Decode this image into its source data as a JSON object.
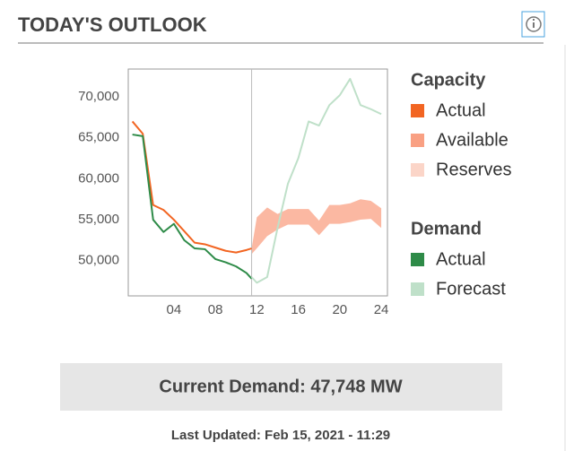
{
  "header": {
    "title": "TODAY'S OUTLOOK"
  },
  "chart_data": {
    "type": "line",
    "x": [
      0,
      1,
      2,
      3,
      4,
      5,
      6,
      7,
      8,
      9,
      10,
      11,
      11.5,
      12,
      13,
      14,
      15,
      16,
      17,
      18,
      19,
      20,
      21,
      22,
      23,
      24
    ],
    "xlim": [
      -0.4,
      24.6
    ],
    "xticks": [
      {
        "value": 4,
        "label": "04"
      },
      {
        "value": 8,
        "label": "08"
      },
      12,
      16,
      20,
      24
    ],
    "ylim": [
      45700,
      73400
    ],
    "yticks": [
      {
        "value": 50000,
        "label": "50,000"
      },
      {
        "value": 55000,
        "label": "55,000"
      },
      {
        "value": 60000,
        "label": "60,000"
      },
      {
        "value": 65000,
        "label": "65,000"
      },
      {
        "value": 70000,
        "label": "70,000"
      }
    ],
    "legend_groups": [
      {
        "title": "Capacity",
        "series": [
          {
            "name": "Actual",
            "color": "#f26522",
            "style": "line",
            "values": [
              67000,
              65500,
              56800,
              56200,
              55000,
              53600,
              52200,
              52000,
              51600,
              51200,
              51000,
              51300,
              51500,
              null,
              null,
              null,
              null,
              null,
              null,
              null,
              null,
              null,
              null,
              null,
              null,
              null
            ]
          },
          {
            "name": "Available",
            "color": "#f9a083",
            "style": "band-top",
            "values": [
              null,
              null,
              null,
              null,
              null,
              null,
              null,
              null,
              null,
              null,
              null,
              null,
              51500,
              55300,
              56500,
              55700,
              56300,
              56300,
              56300,
              54900,
              56800,
              56800,
              57000,
              57500,
              57300,
              56400
            ]
          },
          {
            "name": "Reserves",
            "color": "#fbd5c8",
            "style": "band-bottom",
            "values": [
              null,
              null,
              null,
              null,
              null,
              null,
              null,
              null,
              null,
              null,
              null,
              null,
              50800,
              51500,
              53000,
              53800,
              54400,
              54400,
              54400,
              53100,
              54500,
              54500,
              54700,
              55000,
              55100,
              54000
            ]
          }
        ]
      },
      {
        "title": "Demand",
        "series": [
          {
            "name": "Actual",
            "color": "#2e8b48",
            "style": "line",
            "values": [
              65400,
              65200,
              55000,
              53500,
              54500,
              52500,
              51500,
              51400,
              50200,
              49800,
              49300,
              48500,
              47800,
              null,
              null,
              null,
              null,
              null,
              null,
              null,
              null,
              null,
              null,
              null,
              null,
              null
            ]
          },
          {
            "name": "Forecast",
            "color": "#bfe0c9",
            "style": "line",
            "values": [
              null,
              null,
              null,
              null,
              null,
              null,
              null,
              null,
              null,
              null,
              null,
              null,
              48000,
              47300,
              48000,
              54000,
              59400,
              62500,
              67000,
              66500,
              69000,
              70200,
              72200,
              69000,
              68500,
              67900
            ]
          }
        ]
      }
    ]
  },
  "footer": {
    "current_demand": "Current Demand: 47,748 MW",
    "last_updated": "Last Updated: Feb 15, 2021 - 11:29"
  }
}
